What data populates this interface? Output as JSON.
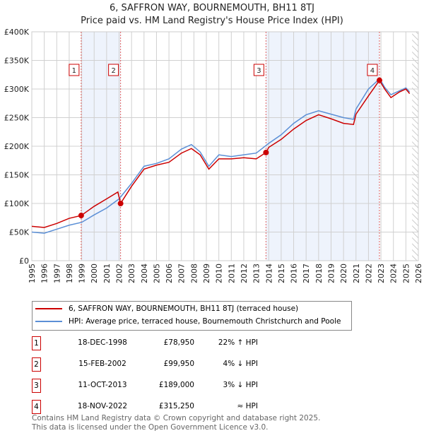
{
  "title": "6, SAFFRON WAY, BOURNEMOUTH, BH11 8TJ",
  "subtitle": "Price paid vs. HM Land Registry's House Price Index (HPI)",
  "chart_data": {
    "type": "line",
    "title": "6, SAFFRON WAY, BOURNEMOUTH, BH11 8TJ",
    "subtitle": "Price paid vs. HM Land Registry's House Price Index (HPI)",
    "xlim": [
      1995,
      2026
    ],
    "ylim": [
      0,
      400000
    ],
    "xticks": [
      "1995",
      "1996",
      "1997",
      "1998",
      "1999",
      "2000",
      "2001",
      "2002",
      "2003",
      "2004",
      "2005",
      "2006",
      "2007",
      "2008",
      "2009",
      "2010",
      "2011",
      "2012",
      "2013",
      "2014",
      "2015",
      "2016",
      "2017",
      "2018",
      "2019",
      "2020",
      "2021",
      "2022",
      "2023",
      "2024",
      "2025",
      "2026"
    ],
    "yticks": [
      {
        "v": 0,
        "label": "£0"
      },
      {
        "v": 50000,
        "label": "£50K"
      },
      {
        "v": 100000,
        "label": "£100K"
      },
      {
        "v": 150000,
        "label": "£150K"
      },
      {
        "v": 200000,
        "label": "£200K"
      },
      {
        "v": 250000,
        "label": "£250K"
      },
      {
        "v": 300000,
        "label": "£300K"
      },
      {
        "v": 350000,
        "label": "£350K"
      },
      {
        "v": 400000,
        "label": "£400K"
      }
    ],
    "grid": true,
    "series": [
      {
        "name": "6, SAFFRON WAY, BOURNEMOUTH, BH11 8TJ (terraced house)",
        "color": "#cc0000",
        "x": [
          1995,
          1996,
          1997,
          1998,
          1998.96,
          2000,
          2001,
          2001.9,
          2002.12,
          2003,
          2004,
          2005,
          2006,
          2007,
          2007.8,
          2008.5,
          2009.2,
          2010,
          2011,
          2012,
          2013,
          2013.78,
          2014,
          2015,
          2016,
          2017,
          2018,
          2019,
          2020,
          2020.8,
          2021,
          2022,
          2022.88,
          2023.3,
          2023.8,
          2024.5,
          2025,
          2025.3
        ],
        "y": [
          60000,
          58000,
          65000,
          74000,
          78950,
          95000,
          108000,
          120000,
          99950,
          130000,
          160000,
          167000,
          172000,
          188000,
          196000,
          185000,
          160000,
          178000,
          178000,
          180000,
          178000,
          189000,
          198000,
          212000,
          230000,
          245000,
          255000,
          248000,
          240000,
          238000,
          256000,
          288000,
          315250,
          300000,
          285000,
          295000,
          300000,
          292000
        ]
      },
      {
        "name": "HPI: Average price, terraced house, Bournemouth Christchurch and Poole",
        "color": "#5b8fd6",
        "x": [
          1995,
          1996,
          1997,
          1998,
          1999,
          2000,
          2001,
          2002,
          2003,
          2004,
          2005,
          2006,
          2007,
          2007.8,
          2008.5,
          2009.2,
          2010,
          2011,
          2012,
          2013,
          2014,
          2015,
          2016,
          2017,
          2018,
          2019,
          2020,
          2020.8,
          2021,
          2022,
          2022.9,
          2023.3,
          2023.8,
          2024.5,
          2025,
          2025.3
        ],
        "y": [
          50000,
          48000,
          55000,
          62000,
          67000,
          80000,
          92000,
          108000,
          135000,
          165000,
          170000,
          178000,
          195000,
          203000,
          190000,
          165000,
          185000,
          182000,
          185000,
          188000,
          205000,
          220000,
          240000,
          255000,
          262000,
          256000,
          250000,
          247000,
          265000,
          300000,
          318000,
          303000,
          290000,
          297000,
          302000,
          295000
        ]
      }
    ],
    "sales": [
      {
        "n": "1",
        "x": 1998.96,
        "y": 78950,
        "date": "18-DEC-1998",
        "price": "£78,950",
        "hpi": "22% ↑ HPI"
      },
      {
        "n": "2",
        "x": 2002.12,
        "y": 99950,
        "date": "15-FEB-2002",
        "price": "£99,950",
        "hpi": "4% ↓ HPI"
      },
      {
        "n": "3",
        "x": 2013.78,
        "y": 189000,
        "date": "11-OCT-2013",
        "price": "£189,000",
        "hpi": "3% ↓ HPI"
      },
      {
        "n": "4",
        "x": 2022.88,
        "y": 315250,
        "date": "18-NOV-2022",
        "price": "£315,250",
        "hpi": "≈ HPI"
      }
    ],
    "hatch_from": 2025.5
  },
  "legend": {
    "red": "6, SAFFRON WAY, BOURNEMOUTH, BH11 8TJ (terraced house)",
    "blue": "HPI: Average price, terraced house, Bournemouth Christchurch and Poole"
  },
  "footer": {
    "line1": "Contains HM Land Registry data © Crown copyright and database right 2025.",
    "line2": "This data is licensed under the Open Government Licence v3.0."
  }
}
